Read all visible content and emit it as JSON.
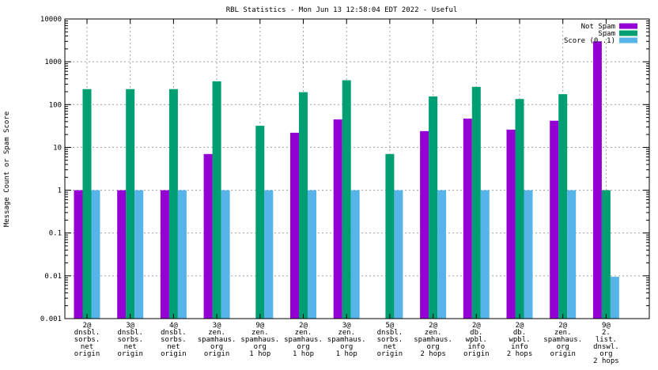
{
  "chart_data": {
    "type": "bar",
    "title": "RBL Statistics - Mon Jun 13 12:58:04 EDT 2022 - Useful",
    "ylabel": "Message Count or Spam Score",
    "xlabel": "",
    "yscale": "log",
    "ylim": [
      0.001,
      10000
    ],
    "yticks": [
      "0.001",
      "0.01",
      "0.1",
      "1",
      "10",
      "100",
      "1000",
      "10000"
    ],
    "grid": true,
    "legend_position": "top-right",
    "categories": [
      [
        "2@",
        "dnsbl.",
        "sorbs.",
        "net",
        "origin"
      ],
      [
        "3@",
        "dnsbl.",
        "sorbs.",
        "net",
        "origin"
      ],
      [
        "4@",
        "dnsbl.",
        "sorbs.",
        "net",
        "origin"
      ],
      [
        "3@",
        "zen.",
        "spamhaus.",
        "org",
        "origin"
      ],
      [
        "9@",
        "zen.",
        "spamhaus.",
        "org",
        "1 hop"
      ],
      [
        "2@",
        "zen.",
        "spamhaus.",
        "org",
        "1 hop"
      ],
      [
        "3@",
        "zen.",
        "spamhaus.",
        "org",
        "1 hop"
      ],
      [
        "5@",
        "dnsbl.",
        "sorbs.",
        "net",
        "origin"
      ],
      [
        "2@",
        "zen.",
        "spamhaus.",
        "org",
        "2 hops"
      ],
      [
        "2@",
        "db.",
        "wpbl.",
        "info",
        "origin"
      ],
      [
        "2@",
        "db.",
        "wpbl.",
        "info",
        "2 hops"
      ],
      [
        "2@",
        "zen.",
        "spamhaus.",
        "org",
        "origin"
      ],
      [
        "9@",
        "2.",
        "list.",
        "dnswl.",
        "org",
        "2 hops"
      ]
    ],
    "series": [
      {
        "name": "Not Spam",
        "color": "#9400d3",
        "values": [
          1,
          1,
          1,
          7,
          null,
          22,
          45,
          null,
          24,
          47,
          26,
          42,
          3000
        ]
      },
      {
        "name": "Spam",
        "color": "#009e73",
        "values": [
          230,
          230,
          230,
          350,
          32,
          195,
          370,
          7,
          155,
          260,
          135,
          175,
          1
        ]
      },
      {
        "name": "Score (0..1)",
        "color": "#56b4e9",
        "values": [
          1,
          1,
          1,
          1,
          1,
          1,
          1,
          1,
          1,
          1,
          1,
          1,
          0.0095
        ]
      }
    ]
  }
}
